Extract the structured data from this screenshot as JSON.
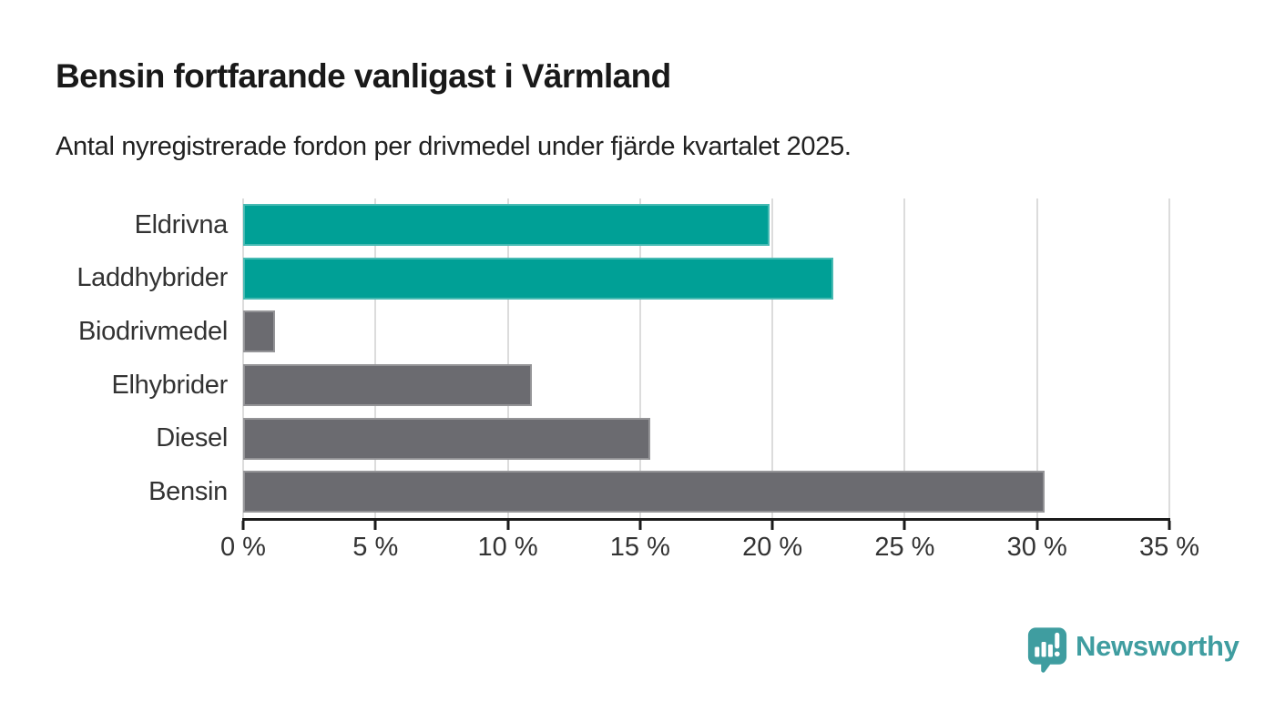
{
  "chart_data": {
    "type": "bar",
    "orientation": "horizontal",
    "title": "Bensin fortfarande vanligast i Värmland",
    "subtitle": "Antal nyregistrerade fordon per drivmedel under fjärde kvartalet 2025.",
    "categories": [
      "Eldrivna",
      "Laddhybrider",
      "Biodrivmedel",
      "Elhybrider",
      "Diesel",
      "Bensin"
    ],
    "values": [
      19.9,
      22.3,
      1.2,
      10.9,
      15.4,
      30.3
    ],
    "unit": "%",
    "xlim": [
      0,
      35
    ],
    "x_ticks": [
      0,
      5,
      10,
      15,
      20,
      25,
      30,
      35
    ],
    "x_tick_labels": [
      "0 %",
      "5 %",
      "10 %",
      "15 %",
      "20 %",
      "25 %",
      "30 %",
      "35 %"
    ],
    "bar_colors": [
      "#00a096",
      "#00a096",
      "#6b6b70",
      "#6b6b70",
      "#6b6b70",
      "#6b6b70"
    ],
    "grid": "vertical-gridlines",
    "legend": "none"
  },
  "colors": {
    "highlight_teal": "#00a096",
    "neutral_gray": "#6b6b70",
    "axis": "#1a1a1a",
    "gridline": "#dcdcdc",
    "title_text": "#191919",
    "body_text": "#333333",
    "brand_teal": "#3f9da0"
  },
  "footer": {
    "brand": "Newsworthy"
  }
}
